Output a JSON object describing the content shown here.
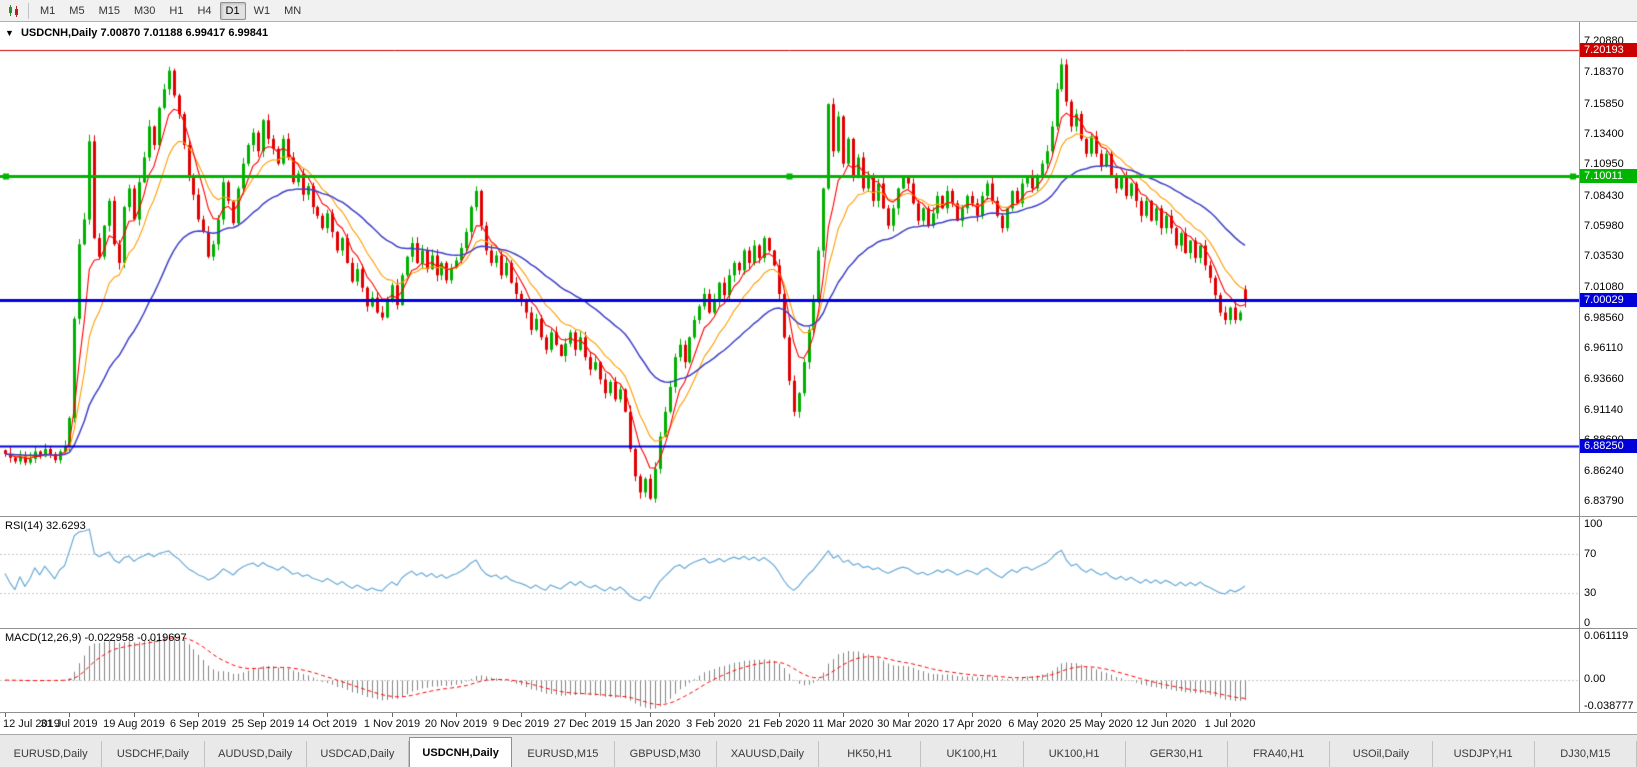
{
  "toolbar": {
    "timeframes": [
      {
        "label": "M1",
        "active": false
      },
      {
        "label": "M5",
        "active": false
      },
      {
        "label": "M15",
        "active": false
      },
      {
        "label": "M30",
        "active": false
      },
      {
        "label": "H1",
        "active": false
      },
      {
        "label": "H4",
        "active": false
      },
      {
        "label": "D1",
        "active": true
      },
      {
        "label": "W1",
        "active": false
      },
      {
        "label": "MN",
        "active": false
      }
    ]
  },
  "chart": {
    "header": {
      "caret": "▼",
      "symbol_period": "USDCNH,Daily",
      "open": "7.00870",
      "high": "7.01188",
      "low": "6.99417",
      "close": "6.99841"
    },
    "price_axis": {
      "labels": [
        "7.20880",
        "7.18370",
        "7.15850",
        "7.13400",
        "7.10950",
        "7.08430",
        "7.05980",
        "7.03530",
        "7.01080",
        "6.98560",
        "6.96110",
        "6.93660",
        "6.91140",
        "6.88690",
        "6.86240",
        "6.83790"
      ]
    }
  },
  "rsi": {
    "label": "RSI(14)",
    "value": "32.6293",
    "color": "#6aabd8",
    "axis_labels": [
      {
        "text": "100",
        "value": 100
      },
      {
        "text": "70",
        "value": 70
      },
      {
        "text": "30",
        "value": 30
      },
      {
        "text": "0",
        "value": 0
      }
    ],
    "levels": [
      70,
      30
    ]
  },
  "macd": {
    "label": "MACD(12,26,9)",
    "value_main": "-0.022958",
    "value_signal": "-0.019697",
    "histogram_color": "#848484",
    "signal_color": "#ff0000",
    "axis_labels": [
      {
        "text": "0.061119",
        "value": 0.061119
      },
      {
        "text": "0.00",
        "value": 0
      },
      {
        "text": "-0.038777",
        "value": -0.038777
      }
    ],
    "axis_max": 0.061119,
    "axis_min": -0.038777
  },
  "tabs": [
    {
      "label": "EURUSD,Daily",
      "active": false
    },
    {
      "label": "USDCHF,Daily",
      "active": false
    },
    {
      "label": "AUDUSD,Daily",
      "active": false
    },
    {
      "label": "USDCAD,Daily",
      "active": false
    },
    {
      "label": "USDCNH,Daily",
      "active": true
    },
    {
      "label": "EURUSD,M15",
      "active": false
    },
    {
      "label": "GBPUSD,M30",
      "active": false
    },
    {
      "label": "XAUUSD,Daily",
      "active": false
    },
    {
      "label": "HK50,H1",
      "active": false
    },
    {
      "label": "UK100,H1",
      "active": false
    },
    {
      "label": "UK100,H1",
      "active": false
    },
    {
      "label": "GER30,H1",
      "active": false
    },
    {
      "label": "FRA40,H1",
      "active": false
    },
    {
      "label": "USOil,Daily",
      "active": false
    },
    {
      "label": "USDJPY,H1",
      "active": false
    },
    {
      "label": "DJ30,M15",
      "active": false
    }
  ],
  "chart_data": {
    "type": "candlestick",
    "symbol": "USDCNH",
    "timeframe": "Daily",
    "y_range": [
      6.826,
      7.2242
    ],
    "candle_up": "#00b000",
    "candle_down": "#e00000",
    "x_tick_labels": [
      "12 Jul 2019",
      "31 Jul 2019",
      "19 Aug 2019",
      "6 Sep 2019",
      "25 Sep 2019",
      "14 Oct 2019",
      "1 Nov 2019",
      "20 Nov 2019",
      "9 Dec 2019",
      "27 Dec 2019",
      "15 Jan 2020",
      "3 Feb 2020",
      "21 Feb 2020",
      "11 Mar 2020",
      "30 Mar 2020",
      "17 Apr 2020",
      "6 May 2020",
      "25 May 2020",
      "12 Jun 2020",
      "1 Jul 2020"
    ],
    "x_tick_indices": [
      0,
      13,
      26,
      39,
      52,
      65,
      78,
      91,
      104,
      117,
      130,
      143,
      156,
      169,
      182,
      195,
      208,
      221,
      234,
      247
    ],
    "closes": [
      6.876,
      6.873,
      6.87,
      6.874,
      6.869,
      6.872,
      6.878,
      6.874,
      6.88,
      6.876,
      6.871,
      6.878,
      6.882,
      6.905,
      6.985,
      7.045,
      7.065,
      7.128,
      7.05,
      7.035,
      7.06,
      7.08,
      7.045,
      7.03,
      7.075,
      7.09,
      7.065,
      7.095,
      7.115,
      7.14,
      7.125,
      7.155,
      7.17,
      7.185,
      7.165,
      7.15,
      7.125,
      7.1,
      7.085,
      7.065,
      7.055,
      7.035,
      7.045,
      7.065,
      7.095,
      7.08,
      7.062,
      7.09,
      7.11,
      7.125,
      7.135,
      7.12,
      7.145,
      7.13,
      7.122,
      7.11,
      7.13,
      7.115,
      7.095,
      7.102,
      7.085,
      7.092,
      7.075,
      7.068,
      7.058,
      7.07,
      7.055,
      7.04,
      7.05,
      7.03,
      7.015,
      7.025,
      7.01,
      6.995,
      7.002,
      6.99,
      6.986,
      7.0,
      7.012,
      6.996,
      7.02,
      7.035,
      7.046,
      7.03,
      7.04,
      7.025,
      7.036,
      7.02,
      7.03,
      7.016,
      7.026,
      7.032,
      7.042,
      7.055,
      7.075,
      7.088,
      7.06,
      7.04,
      7.03,
      7.036,
      7.02,
      7.03,
      7.014,
      7.005,
      6.999,
      6.99,
      6.976,
      6.985,
      6.97,
      6.96,
      6.974,
      6.964,
      6.955,
      6.965,
      6.974,
      6.96,
      6.97,
      6.954,
      6.944,
      6.95,
      6.936,
      6.925,
      6.934,
      6.92,
      6.928,
      6.91,
      6.88,
      6.858,
      6.845,
      6.856,
      6.84,
      6.864,
      6.89,
      6.91,
      6.93,
      6.954,
      6.964,
      6.95,
      6.97,
      6.984,
      6.995,
      7.005,
      6.99,
      7.0,
      7.014,
      7.004,
      7.02,
      7.03,
      7.024,
      7.04,
      7.03,
      7.044,
      7.034,
      7.05,
      7.04,
      7.028,
      7.005,
      6.97,
      6.935,
      6.91,
      6.925,
      6.95,
      6.976,
      7.0,
      7.04,
      7.09,
      7.158,
      7.12,
      7.148,
      7.11,
      7.13,
      7.1,
      7.115,
      7.09,
      7.1,
      7.08,
      7.094,
      7.074,
      7.06,
      7.074,
      7.09,
      7.1,
      7.094,
      7.078,
      7.064,
      7.074,
      7.06,
      7.07,
      7.084,
      7.074,
      7.088,
      7.078,
      7.064,
      7.074,
      7.084,
      7.078,
      7.068,
      7.084,
      7.094,
      7.08,
      7.068,
      7.058,
      7.074,
      7.088,
      7.078,
      7.094,
      7.1,
      7.09,
      7.1,
      7.11,
      7.12,
      7.14,
      7.17,
      7.19,
      7.16,
      7.14,
      7.15,
      7.13,
      7.118,
      7.132,
      7.118,
      7.108,
      7.118,
      7.1,
      7.09,
      7.1,
      7.084,
      7.094,
      7.08,
      7.068,
      7.08,
      7.064,
      7.074,
      7.058,
      7.068,
      7.058,
      7.044,
      7.054,
      7.038,
      7.048,
      7.034,
      7.044,
      7.028,
      7.018,
      7.004,
      6.99,
      6.984,
      6.994,
      6.984,
      6.99,
      6.99841
    ],
    "last_candle": {
      "o": 7.0087,
      "h": 7.01188,
      "l": 6.99417,
      "c": 6.99841
    },
    "moving_averages": [
      {
        "name": "fast",
        "period": 6,
        "color": "#ff0000"
      },
      {
        "name": "medium",
        "period": 12,
        "color": "#ff9d00"
      },
      {
        "name": "slow",
        "period": 34,
        "color": "#4040c8"
      }
    ],
    "horizontal_lines": [
      {
        "label": "7.20193",
        "value": 7.20193,
        "color": "#cc0000",
        "width": 1,
        "selected": false
      },
      {
        "label": "7.10011",
        "value": 7.10011,
        "color": "#00b400",
        "width": 3,
        "selected": true
      },
      {
        "label": "7.00029",
        "value": 7.00029,
        "color": "#0000d8",
        "width": 3,
        "selected": false
      },
      {
        "label": "6.88250",
        "value": 6.8825,
        "color": "#0000d8",
        "width": 2,
        "selected": false
      }
    ],
    "rsi": {
      "period": 14,
      "current": 32.6293
    },
    "macd": {
      "fast": 12,
      "slow": 26,
      "signal": 9,
      "current": -0.022958,
      "signal_current": -0.019697
    }
  }
}
